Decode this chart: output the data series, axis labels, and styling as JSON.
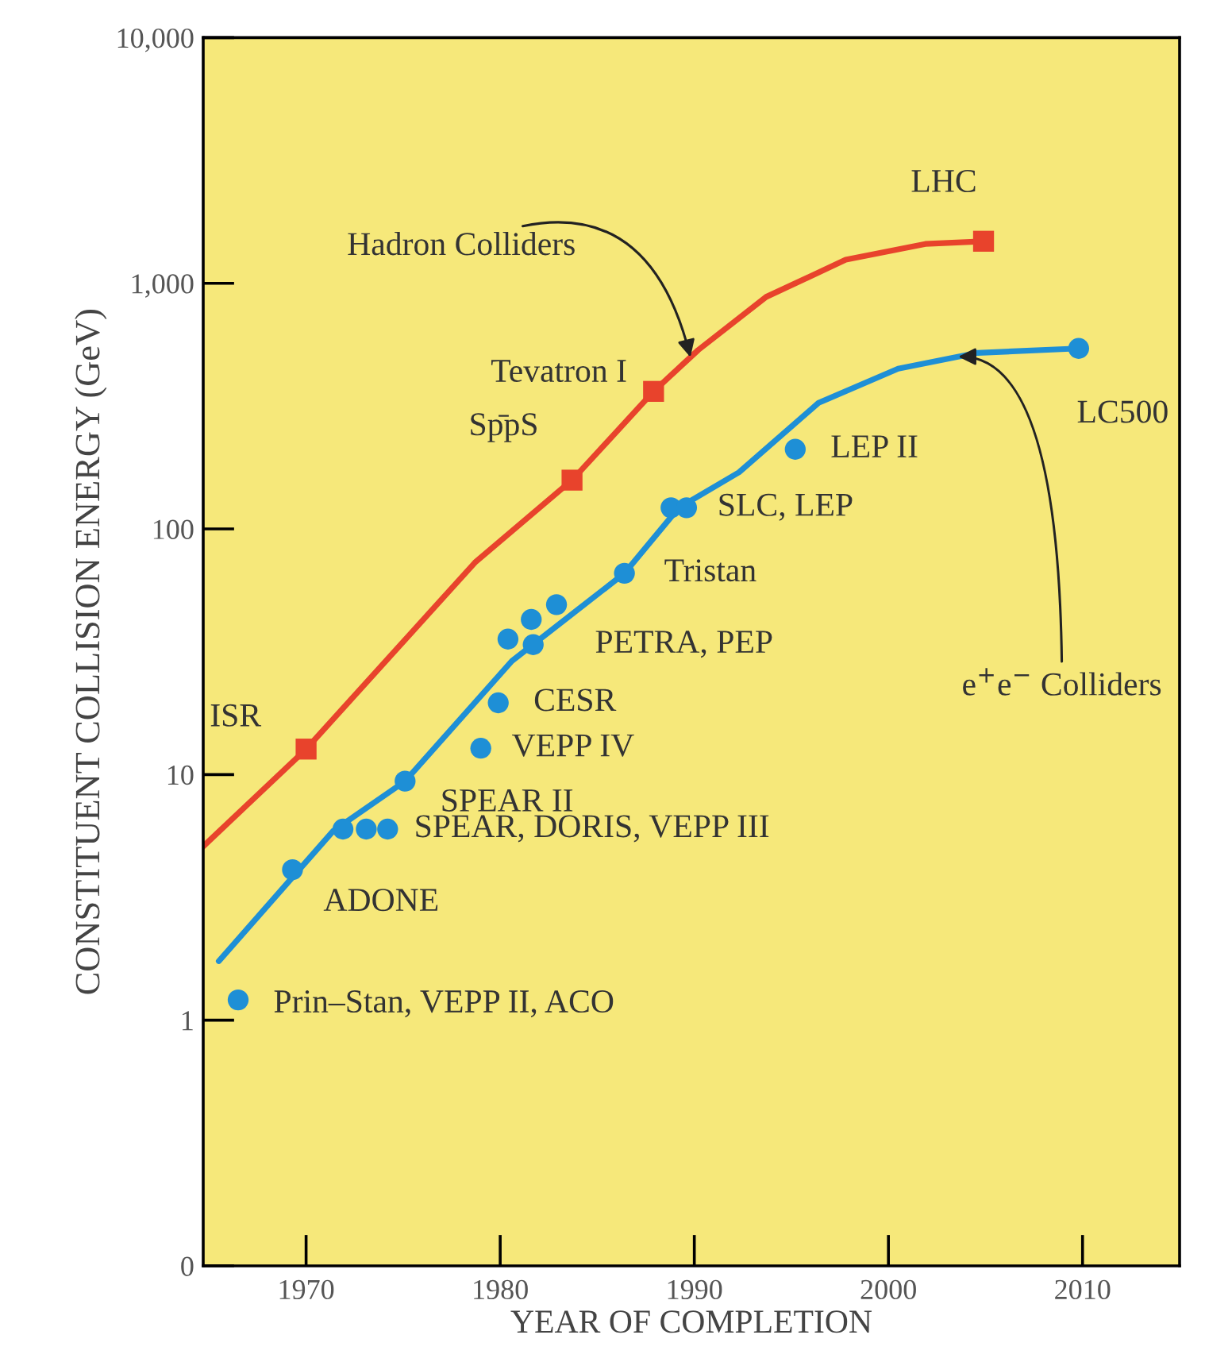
{
  "chart_data": {
    "type": "line",
    "xlabel": "YEAR OF COMPLETION",
    "ylabel": "CONSTITUENT COLLISION ENERGY (GeV)",
    "log": "y",
    "xlim": [
      1964.7,
      2015
    ],
    "xticks": [
      1970,
      1980,
      1990,
      2000,
      2010
    ],
    "ylim": [
      0.1,
      10000
    ],
    "yticks": [
      {
        "value": 0.1,
        "label": "0"
      },
      1,
      10,
      100,
      {
        "value": 1000,
        "label": "1,000"
      },
      {
        "value": 10000,
        "label": "10,000"
      }
    ],
    "grid": false,
    "legend": false,
    "series": [
      {
        "color": "#e8432c",
        "x": [
          1964.7,
          1970.0,
          1978.7,
          1983.7,
          1987.9,
          1990.2,
          1993.7,
          1997.8,
          2001.9,
          2004.9
        ],
        "values": [
          5.1,
          12.7,
          73,
          158,
          363,
          535,
          880,
          1247,
          1446,
          1483
        ]
      },
      {
        "type": "scatter",
        "marker": "square",
        "color": "#e8432c",
        "x": [
          1970.0,
          1983.7,
          1987.9,
          2004.9
        ],
        "values": [
          12.7,
          158,
          363,
          1483
        ]
      },
      {
        "color": "#1e8fd6",
        "x": [
          1965.5,
          1971.4,
          1975.1,
          1980.6,
          1986.4,
          1989.2,
          1992.3,
          1996.4,
          2000.5,
          2004.6,
          2009.8
        ],
        "values": [
          1.74,
          5.9,
          9.4,
          29,
          66,
          122,
          170,
          326,
          449,
          521,
          543
        ]
      },
      {
        "type": "scatter",
        "marker": "circle",
        "color": "#1e8fd6",
        "x": [
          1966.5,
          1969.3,
          1971.9,
          1973.1,
          1974.2,
          1975.1,
          1979.0,
          1979.9,
          1980.4,
          1981.6,
          1982.9,
          1981.7,
          1986.4,
          1988.8,
          1989.6,
          1995.2,
          2009.8
        ],
        "values": [
          1.21,
          4.1,
          6.0,
          6.0,
          6.0,
          9.4,
          12.8,
          19.6,
          35.6,
          42.8,
          49.2,
          33.8,
          66,
          122,
          122,
          211,
          543
        ]
      }
    ],
    "annotations": [
      {
        "text": "ISR",
        "x": 1970.0,
        "y": 12.7
      },
      {
        "text": "Sp̄pS",
        "x": 1983.7,
        "y": 158
      },
      {
        "text": "Tevatron I",
        "x": 1987.9,
        "y": 363
      },
      {
        "text": "LHC",
        "x": 2004.9,
        "y": 1483
      },
      {
        "text": "LC500",
        "x": 2009.8,
        "y": 543
      },
      {
        "text": "LEP II",
        "x": 1995.2,
        "y": 211
      },
      {
        "text": "SLC, LEP",
        "x": 1989.6,
        "y": 122
      },
      {
        "text": "Tristan",
        "x": 1986.4,
        "y": 66
      },
      {
        "text": "PETRA, PEP",
        "x": 1981.7,
        "y": 33.8
      },
      {
        "text": "CESR",
        "x": 1979.9,
        "y": 19.6
      },
      {
        "text": "VEPP IV",
        "x": 1979.0,
        "y": 12.8
      },
      {
        "text": "SPEAR II",
        "x": 1975.1,
        "y": 9.4
      },
      {
        "text": "SPEAR, DORIS, VEPP III",
        "x": 1974.2,
        "y": 6.0
      },
      {
        "text": "ADONE",
        "x": 1969.3,
        "y": 4.1
      },
      {
        "text": "Prin–Stan, VEPP II, ACO",
        "x": 1966.5,
        "y": 1.21
      },
      {
        "text": "Hadron Colliders",
        "x": 1989.8,
        "y": 500
      },
      {
        "text": "e$^{+}$e$^{−}$ Colliders",
        "x": 2003.6,
        "y": 503
      }
    ]
  }
}
